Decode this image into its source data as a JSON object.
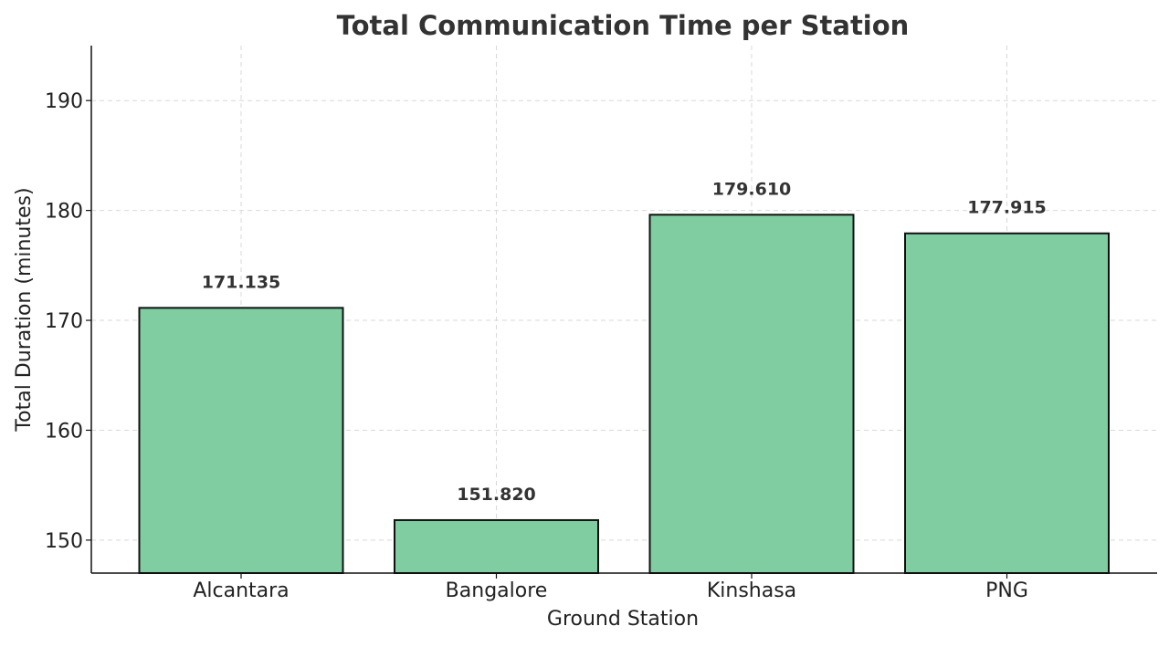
{
  "chart_data": {
    "type": "bar",
    "title": "Total Communication Time per Station",
    "xlabel": "Ground Station",
    "ylabel": "Total Duration (minutes)",
    "categories": [
      "Alcantara",
      "Bangalore",
      "Kinshasa",
      "PNG"
    ],
    "values": [
      171.135,
      151.82,
      179.61,
      177.915
    ],
    "value_labels": [
      "171.135",
      "151.820",
      "179.610",
      "177.915"
    ],
    "ylim": [
      147,
      195
    ],
    "yticks": [
      150,
      160,
      170,
      180,
      190
    ],
    "grid": true,
    "bar_color": "#7fcda0",
    "edge_color": "#111111"
  }
}
